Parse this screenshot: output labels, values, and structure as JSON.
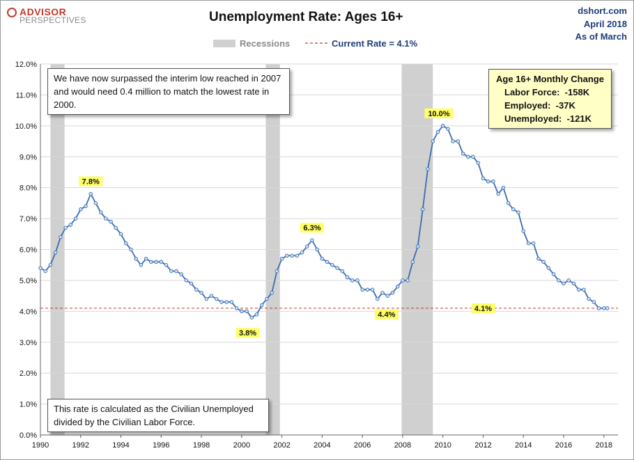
{
  "header": {
    "logo_top": "ADVISOR",
    "logo_bottom": "PERSPECTIVES",
    "title": "Unemployment Rate: Ages 16+",
    "source": "dshort.com",
    "date": "April 2018",
    "as_of": "As of March"
  },
  "legend": {
    "recessions": "Recessions",
    "current_rate": "Current Rate = 4.1%"
  },
  "notes": {
    "top": "We have now surpassed the interim low reached in 2007 and would need 0.4 million to match the lowest rate in 2000.",
    "bottom": "This rate is calculated as the Civilian Unemployed divided by the Civilian Labor Force."
  },
  "monthly_change": {
    "title": "Age 16+ Monthly Change",
    "labor_force": "Labor Force:  -158K",
    "employed": "Employed:  -37K",
    "unemployed": "Unemployed:  -121K"
  },
  "colors": {
    "line": "#3a6cb0",
    "marker_fill": "#cfe1f5",
    "recession": "#d0d0d0",
    "current_line": "#c0392b",
    "label_bg": "#ffff66",
    "title_blue": "#1f3d7a"
  },
  "chart_data": {
    "type": "line",
    "title": "Unemployment Rate: Ages 16+",
    "ylim": [
      0,
      12
    ],
    "xlim": [
      1990,
      2018.7
    ],
    "y_ticks": [
      "0.0%",
      "1.0%",
      "2.0%",
      "3.0%",
      "4.0%",
      "5.0%",
      "6.0%",
      "7.0%",
      "8.0%",
      "9.0%",
      "10.0%",
      "11.0%",
      "12.0%"
    ],
    "x_ticks": [
      "1990",
      "1992",
      "1994",
      "1996",
      "1998",
      "2000",
      "2002",
      "2004",
      "2006",
      "2008",
      "2010",
      "2012",
      "2014",
      "2016",
      "2018"
    ],
    "grid": true,
    "legend_position": "top-center",
    "current_rate": 4.1,
    "recessions": [
      [
        1990.5,
        1991.2
      ],
      [
        2001.2,
        2001.9
      ],
      [
        2007.95,
        2009.5
      ]
    ],
    "annotations": [
      {
        "label": "7.8%",
        "x": 1992.5,
        "y": 7.8
      },
      {
        "label": "3.8%",
        "x": 2000.3,
        "y": 3.8
      },
      {
        "label": "6.3%",
        "x": 2003.5,
        "y": 6.3
      },
      {
        "label": "4.4%",
        "x": 2007.2,
        "y": 4.4
      },
      {
        "label": "10.0%",
        "x": 2009.8,
        "y": 10.0
      },
      {
        "label": "4.1%",
        "x": 2018.2,
        "y": 4.1
      }
    ],
    "series": [
      {
        "points": [
          [
            1990.0,
            5.4
          ],
          [
            1990.25,
            5.3
          ],
          [
            1990.5,
            5.5
          ],
          [
            1990.75,
            5.9
          ],
          [
            1991.0,
            6.4
          ],
          [
            1991.25,
            6.7
          ],
          [
            1991.5,
            6.8
          ],
          [
            1991.75,
            7.0
          ],
          [
            1992.0,
            7.3
          ],
          [
            1992.25,
            7.4
          ],
          [
            1992.5,
            7.8
          ],
          [
            1992.75,
            7.5
          ],
          [
            1993.0,
            7.2
          ],
          [
            1993.25,
            7.0
          ],
          [
            1993.5,
            6.9
          ],
          [
            1993.75,
            6.7
          ],
          [
            1994.0,
            6.5
          ],
          [
            1994.25,
            6.2
          ],
          [
            1994.5,
            6.0
          ],
          [
            1994.75,
            5.7
          ],
          [
            1995.0,
            5.5
          ],
          [
            1995.25,
            5.7
          ],
          [
            1995.5,
            5.6
          ],
          [
            1995.75,
            5.6
          ],
          [
            1996.0,
            5.6
          ],
          [
            1996.25,
            5.5
          ],
          [
            1996.5,
            5.3
          ],
          [
            1996.75,
            5.3
          ],
          [
            1997.0,
            5.2
          ],
          [
            1997.25,
            5.0
          ],
          [
            1997.5,
            4.9
          ],
          [
            1997.75,
            4.7
          ],
          [
            1998.0,
            4.6
          ],
          [
            1998.25,
            4.4
          ],
          [
            1998.5,
            4.5
          ],
          [
            1998.75,
            4.4
          ],
          [
            1999.0,
            4.3
          ],
          [
            1999.25,
            4.3
          ],
          [
            1999.5,
            4.3
          ],
          [
            1999.75,
            4.1
          ],
          [
            2000.0,
            4.0
          ],
          [
            2000.25,
            4.0
          ],
          [
            2000.5,
            3.8
          ],
          [
            2000.75,
            3.9
          ],
          [
            2001.0,
            4.2
          ],
          [
            2001.25,
            4.4
          ],
          [
            2001.5,
            4.6
          ],
          [
            2001.75,
            5.3
          ],
          [
            2002.0,
            5.7
          ],
          [
            2002.25,
            5.8
          ],
          [
            2002.5,
            5.8
          ],
          [
            2002.75,
            5.8
          ],
          [
            2003.0,
            5.9
          ],
          [
            2003.25,
            6.1
          ],
          [
            2003.5,
            6.3
          ],
          [
            2003.75,
            6.0
          ],
          [
            2004.0,
            5.7
          ],
          [
            2004.25,
            5.6
          ],
          [
            2004.5,
            5.5
          ],
          [
            2004.75,
            5.4
          ],
          [
            2005.0,
            5.3
          ],
          [
            2005.25,
            5.1
          ],
          [
            2005.5,
            5.0
          ],
          [
            2005.75,
            5.0
          ],
          [
            2006.0,
            4.7
          ],
          [
            2006.25,
            4.7
          ],
          [
            2006.5,
            4.7
          ],
          [
            2006.75,
            4.4
          ],
          [
            2007.0,
            4.6
          ],
          [
            2007.25,
            4.5
          ],
          [
            2007.5,
            4.6
          ],
          [
            2007.75,
            4.8
          ],
          [
            2008.0,
            5.0
          ],
          [
            2008.25,
            5.0
          ],
          [
            2008.5,
            5.6
          ],
          [
            2008.75,
            6.1
          ],
          [
            2009.0,
            7.3
          ],
          [
            2009.25,
            8.6
          ],
          [
            2009.5,
            9.5
          ],
          [
            2009.75,
            9.8
          ],
          [
            2010.0,
            10.0
          ],
          [
            2010.25,
            9.9
          ],
          [
            2010.5,
            9.5
          ],
          [
            2010.75,
            9.5
          ],
          [
            2011.0,
            9.1
          ],
          [
            2011.25,
            9.0
          ],
          [
            2011.5,
            9.0
          ],
          [
            2011.75,
            8.8
          ],
          [
            2012.0,
            8.3
          ],
          [
            2012.25,
            8.2
          ],
          [
            2012.5,
            8.2
          ],
          [
            2012.75,
            7.8
          ],
          [
            2013.0,
            8.0
          ],
          [
            2013.25,
            7.5
          ],
          [
            2013.5,
            7.3
          ],
          [
            2013.75,
            7.2
          ],
          [
            2014.0,
            6.6
          ],
          [
            2014.25,
            6.2
          ],
          [
            2014.5,
            6.2
          ],
          [
            2014.75,
            5.7
          ],
          [
            2015.0,
            5.6
          ],
          [
            2015.25,
            5.4
          ],
          [
            2015.5,
            5.2
          ],
          [
            2015.75,
            5.0
          ],
          [
            2016.0,
            4.9
          ],
          [
            2016.25,
            5.0
          ],
          [
            2016.5,
            4.9
          ],
          [
            2016.75,
            4.7
          ],
          [
            2017.0,
            4.7
          ],
          [
            2017.25,
            4.4
          ],
          [
            2017.5,
            4.3
          ],
          [
            2017.75,
            4.1
          ],
          [
            2018.0,
            4.1
          ],
          [
            2018.17,
            4.1
          ]
        ]
      }
    ]
  }
}
